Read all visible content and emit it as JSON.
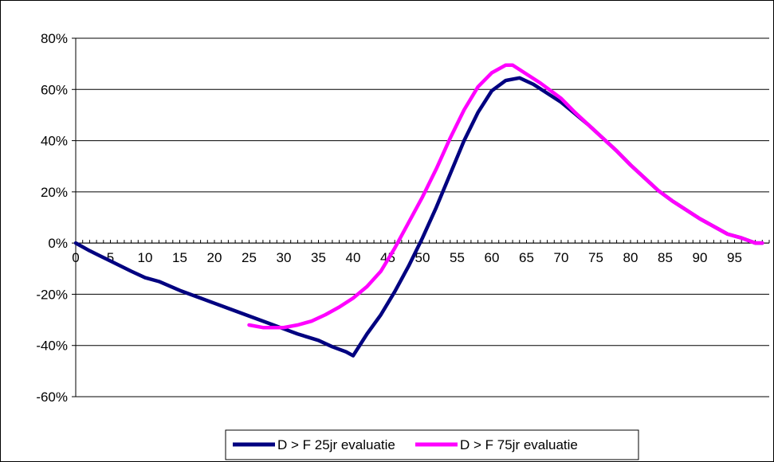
{
  "chart_data": {
    "type": "line",
    "title": "",
    "xlabel": "",
    "ylabel": "",
    "xlim": [
      0,
      100
    ],
    "ylim": [
      -60,
      80
    ],
    "y_ticks": [
      -60,
      -40,
      -20,
      0,
      20,
      40,
      60,
      80
    ],
    "y_tick_labels": [
      "-60%",
      "-40%",
      "-20%",
      "0%",
      "20%",
      "40%",
      "60%",
      "80%"
    ],
    "x_ticks": [
      0,
      5,
      10,
      15,
      20,
      25,
      30,
      35,
      40,
      45,
      50,
      55,
      60,
      65,
      70,
      75,
      80,
      85,
      90,
      95
    ],
    "x_tick_labels": [
      "0",
      "5",
      "10",
      "15",
      "20",
      "25",
      "30",
      "35",
      "40",
      "45",
      "50",
      "55",
      "60",
      "65",
      "70",
      "75",
      "80",
      "85",
      "90",
      "95"
    ],
    "grid": "horizontal",
    "legend_position": "bottom",
    "series": [
      {
        "name": "D > F 25jr evaluatie",
        "color": "#000080",
        "points": [
          [
            0,
            0
          ],
          [
            2,
            -3
          ],
          [
            5,
            -7
          ],
          [
            8,
            -11
          ],
          [
            10,
            -13.5
          ],
          [
            12,
            -15
          ],
          [
            15,
            -18.5
          ],
          [
            18,
            -21.5
          ],
          [
            20,
            -23.5
          ],
          [
            22,
            -25.5
          ],
          [
            25,
            -28.5
          ],
          [
            28,
            -31.5
          ],
          [
            30,
            -33.5
          ],
          [
            32,
            -35.5
          ],
          [
            35,
            -38
          ],
          [
            37,
            -40.5
          ],
          [
            39,
            -42.5
          ],
          [
            40,
            -44
          ],
          [
            42,
            -35.5
          ],
          [
            44,
            -28
          ],
          [
            46,
            -19
          ],
          [
            48,
            -9
          ],
          [
            50,
            2
          ],
          [
            52,
            14
          ],
          [
            54,
            27
          ],
          [
            56,
            40
          ],
          [
            58,
            51
          ],
          [
            60,
            59.5
          ],
          [
            62,
            63.5
          ],
          [
            64,
            64.5
          ],
          [
            66,
            62
          ],
          [
            68,
            58.5
          ],
          [
            70,
            55
          ],
          [
            72,
            50.5
          ],
          [
            74,
            46
          ],
          [
            76,
            41
          ],
          [
            78,
            36
          ],
          [
            80,
            30.5
          ],
          [
            82,
            25.5
          ],
          [
            84,
            20.5
          ],
          [
            86,
            16.5
          ],
          [
            88,
            13
          ],
          [
            90,
            9.5
          ],
          [
            92,
            6.5
          ],
          [
            94,
            3.5
          ],
          [
            96,
            2
          ],
          [
            98,
            0
          ],
          [
            99,
            0
          ]
        ]
      },
      {
        "name": "D > F 75jr evaluatie",
        "color": "#ff00ff",
        "points": [
          [
            25,
            -32
          ],
          [
            27,
            -33
          ],
          [
            30,
            -33
          ],
          [
            32,
            -32
          ],
          [
            34,
            -30.5
          ],
          [
            36,
            -28
          ],
          [
            38,
            -25
          ],
          [
            40,
            -21.5
          ],
          [
            42,
            -17
          ],
          [
            44,
            -11
          ],
          [
            46,
            -2
          ],
          [
            48,
            8
          ],
          [
            50,
            18
          ],
          [
            52,
            29
          ],
          [
            54,
            41
          ],
          [
            56,
            52
          ],
          [
            58,
            61
          ],
          [
            60,
            66.5
          ],
          [
            62,
            69.5
          ],
          [
            63,
            69.5
          ],
          [
            65,
            66
          ],
          [
            67,
            62.5
          ],
          [
            70,
            56.5
          ],
          [
            72,
            51
          ],
          [
            74,
            46
          ],
          [
            76,
            41
          ],
          [
            78,
            36
          ],
          [
            80,
            30.5
          ],
          [
            82,
            25.5
          ],
          [
            84,
            20.5
          ],
          [
            86,
            16.5
          ],
          [
            88,
            13
          ],
          [
            90,
            9.5
          ],
          [
            92,
            6.5
          ],
          [
            94,
            3.5
          ],
          [
            96,
            2
          ],
          [
            98,
            0
          ],
          [
            99,
            0
          ]
        ]
      }
    ]
  }
}
